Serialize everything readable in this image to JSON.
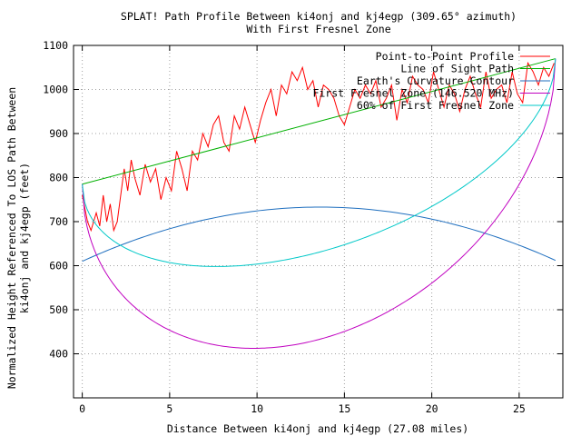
{
  "chart_data": {
    "type": "line",
    "title": "SPLAT! Path Profile Between ki4onj and kj4egp (309.65° azimuth)",
    "subtitle": "With First Fresnel Zone",
    "xlabel": "Distance Between ki4onj and kj4egp (27.08 miles)",
    "ylabel_line1": "Normalized Height Referenced To LOS Path Between",
    "ylabel_line2": "ki4onj and kj4egp (feet)",
    "xlim": [
      -0.5,
      27.5
    ],
    "ylim": [
      300,
      1100
    ],
    "xticks": [
      0,
      5,
      10,
      15,
      20,
      25
    ],
    "yticks": [
      400,
      500,
      600,
      700,
      800,
      900,
      1000,
      1100
    ],
    "grid": true,
    "legend_position": "top-right",
    "series": [
      {
        "name": "Point-to-Point Profile",
        "color": "#ff0000",
        "x": [
          0.0,
          0.3,
          0.5,
          0.8,
          1.0,
          1.2,
          1.4,
          1.6,
          1.8,
          2.0,
          2.2,
          2.4,
          2.6,
          2.8,
          3.0,
          3.3,
          3.6,
          3.9,
          4.2,
          4.5,
          4.8,
          5.1,
          5.4,
          5.7,
          6.0,
          6.3,
          6.6,
          6.9,
          7.2,
          7.5,
          7.8,
          8.1,
          8.4,
          8.7,
          9.0,
          9.3,
          9.6,
          9.9,
          10.2,
          10.5,
          10.8,
          11.1,
          11.4,
          11.7,
          12.0,
          12.3,
          12.6,
          12.9,
          13.2,
          13.5,
          13.8,
          14.1,
          14.4,
          14.7,
          15.0,
          15.3,
          15.6,
          15.9,
          16.2,
          16.5,
          16.8,
          17.1,
          17.4,
          17.7,
          18.0,
          18.3,
          18.6,
          18.9,
          19.2,
          19.5,
          19.8,
          20.1,
          20.4,
          20.7,
          21.0,
          21.3,
          21.6,
          21.9,
          22.2,
          22.5,
          22.8,
          23.1,
          23.4,
          23.7,
          24.0,
          24.3,
          24.6,
          24.9,
          25.2,
          25.5,
          25.8,
          26.1,
          26.4,
          26.7,
          27.0
        ],
        "y": [
          760,
          700,
          680,
          720,
          690,
          760,
          700,
          740,
          680,
          700,
          760,
          820,
          770,
          840,
          800,
          760,
          830,
          790,
          820,
          750,
          800,
          770,
          860,
          820,
          770,
          860,
          840,
          900,
          870,
          920,
          940,
          880,
          860,
          940,
          910,
          960,
          920,
          880,
          930,
          970,
          1000,
          940,
          1010,
          990,
          1040,
          1020,
          1050,
          1000,
          1020,
          960,
          1010,
          1000,
          980,
          940,
          920,
          960,
          1000,
          980,
          1010,
          990,
          1020,
          960,
          980,
          1010,
          930,
          1000,
          970,
          1030,
          1010,
          1000,
          970,
          1040,
          1000,
          960,
          1010,
          990,
          950,
          1000,
          1030,
          990,
          960,
          1040,
          980,
          1000,
          1010,
          970,
          1040,
          990,
          970,
          1060,
          1040,
          1010,
          1050,
          1030,
          1060
        ]
      },
      {
        "name": "Line of Sight Path",
        "color": "#00b000",
        "x": [
          0,
          27.08
        ],
        "y": [
          785,
          1070
        ]
      },
      {
        "name": "Earth's Curvature Contour",
        "color": "#1f6fbf",
        "x": [
          0,
          27.08
        ],
        "y_endpoints": [
          610,
          612
        ],
        "y_peak": 733
      },
      {
        "name": "First Fresnel Zone (146.520 MHz)",
        "color": "#c000c0",
        "x": [
          0,
          27.08
        ],
        "y_endpoints": [
          785,
          1070
        ],
        "y_depth_mid": 495
      },
      {
        "name": "60% of First Fresnel Zone",
        "color": "#00c8c8",
        "x": [
          0,
          27.08
        ],
        "y_endpoints": [
          785,
          1070
        ],
        "y_depth_mid": 297
      }
    ]
  }
}
